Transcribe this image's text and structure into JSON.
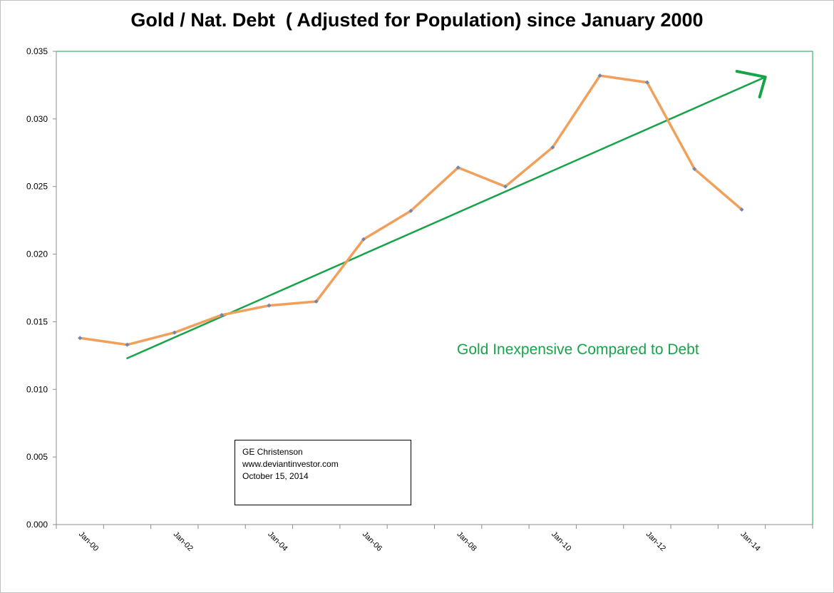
{
  "chart_data": {
    "type": "line",
    "title": "Gold / Nat. Debt  ( Adjusted for Population) since January 2000",
    "xlabel": "",
    "ylabel": "",
    "x_tick_labels": [
      "Jan-00",
      "Jan-02",
      "Jan-04",
      "Jan-06",
      "Jan-08",
      "Jan-10",
      "Jan-12",
      "Jan-14"
    ],
    "y_tick_labels": [
      "0.000",
      "0.005",
      "0.010",
      "0.015",
      "0.020",
      "0.025",
      "0.030",
      "0.035"
    ],
    "ylim": [
      0,
      0.035
    ],
    "xlim": [
      "1999-07",
      "2015-07"
    ],
    "x": [
      "2000-01",
      "2001-01",
      "2002-01",
      "2003-01",
      "2004-01",
      "2005-01",
      "2006-01",
      "2007-01",
      "2008-01",
      "2009-01",
      "2010-01",
      "2011-01",
      "2012-01",
      "2013-01",
      "2014-01"
    ],
    "series": [
      {
        "values": [
          0.0138,
          0.0133,
          0.0142,
          0.0155,
          0.0162,
          0.0165,
          0.0211,
          0.0232,
          0.0264,
          0.025,
          0.0279,
          0.0332,
          0.0327,
          0.0263,
          0.0233
        ],
        "color": "#f0a05a",
        "marker_color": "#6f86b0"
      }
    ],
    "trend_line": {
      "color": "#17a34a",
      "x": [
        "2001-01",
        "2014-07"
      ],
      "y": [
        0.0123,
        0.0331
      ]
    },
    "grid": false,
    "legend": "none"
  },
  "annotation": "Gold Inexpensive Compared to Debt",
  "info_box": {
    "line1": "GE Christenson",
    "line2": "www.deviantinvestor.com",
    "line3": "October 15, 2014"
  },
  "colors": {
    "plot_border": "#17a34a",
    "axis": "#8c8c8c",
    "series": "#f0a05a",
    "trend": "#17a34a"
  }
}
